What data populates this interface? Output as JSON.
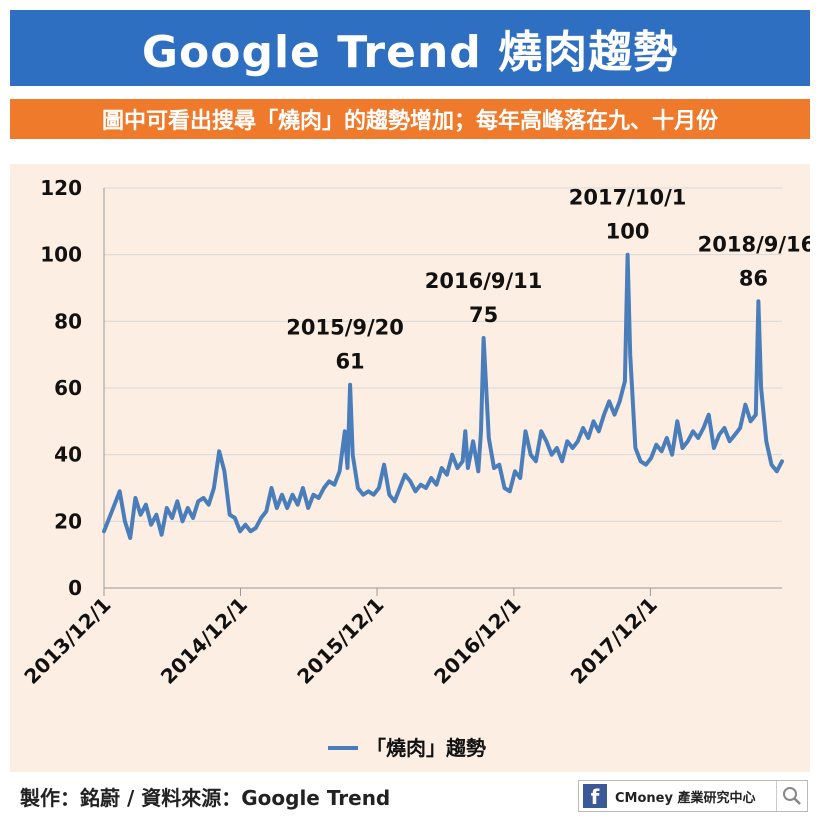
{
  "header": {
    "title": "Google Trend 燒肉趨勢"
  },
  "subheader": {
    "text": "圖中可看出搜尋「燒肉」的趨勢增加；每年高峰落在九、十月份"
  },
  "footer": {
    "credit": "製作：銘蔚 / 資料來源：Google Trend"
  },
  "brand": {
    "fb_glyph": "f",
    "label": "CMoney 產業研究中心",
    "icon": "search-icon"
  },
  "colors": {
    "banner": "#2f6fc2",
    "subheader": "#ef7a2b",
    "panel": "#fdeee3",
    "line": "#4a7ebb"
  },
  "chart_data": {
    "type": "line",
    "yticks": [
      "0",
      "20",
      "40",
      "60",
      "80",
      "100",
      "120"
    ],
    "ylim": [
      0,
      120
    ],
    "xticks": [
      "2013/12/1",
      "2014/12/1",
      "2015/12/1",
      "2016/12/1",
      "2017/12/1"
    ],
    "grid": true,
    "legend": {
      "position": "bottom",
      "label": "「燒肉」趨勢"
    },
    "annotations": [
      {
        "date": "2015/9/20",
        "value": "61",
        "label": "2015/9/20"
      },
      {
        "date": "2016/9/11",
        "value": "75",
        "label": "2016/9/11"
      },
      {
        "date": "2017/10/1",
        "value": "100",
        "label": "2017/10/1"
      },
      {
        "date": "2018/9/16",
        "value": "86",
        "label": "2018/9/16"
      }
    ],
    "series": [
      {
        "name": "「燒肉」趨勢",
        "points": [
          [
            "2013-12-01",
            17
          ],
          [
            "2013-12-22",
            23
          ],
          [
            "2014-01-12",
            29
          ],
          [
            "2014-01-26",
            20
          ],
          [
            "2014-02-09",
            15
          ],
          [
            "2014-02-23",
            27
          ],
          [
            "2014-03-09",
            22
          ],
          [
            "2014-03-23",
            25
          ],
          [
            "2014-04-06",
            19
          ],
          [
            "2014-04-20",
            22
          ],
          [
            "2014-05-04",
            16
          ],
          [
            "2014-05-18",
            24
          ],
          [
            "2014-06-01",
            21
          ],
          [
            "2014-06-15",
            26
          ],
          [
            "2014-06-29",
            20
          ],
          [
            "2014-07-13",
            24
          ],
          [
            "2014-07-27",
            21
          ],
          [
            "2014-08-10",
            26
          ],
          [
            "2014-08-24",
            27
          ],
          [
            "2014-09-07",
            25
          ],
          [
            "2014-09-21",
            30
          ],
          [
            "2014-10-05",
            41
          ],
          [
            "2014-10-19",
            35
          ],
          [
            "2014-11-02",
            22
          ],
          [
            "2014-11-16",
            21
          ],
          [
            "2014-11-30",
            17
          ],
          [
            "2014-12-14",
            19
          ],
          [
            "2014-12-28",
            17
          ],
          [
            "2015-01-11",
            18
          ],
          [
            "2015-01-25",
            21
          ],
          [
            "2015-02-08",
            23
          ],
          [
            "2015-02-22",
            30
          ],
          [
            "2015-03-08",
            24
          ],
          [
            "2015-03-22",
            28
          ],
          [
            "2015-04-05",
            24
          ],
          [
            "2015-04-19",
            28
          ],
          [
            "2015-05-03",
            25
          ],
          [
            "2015-05-17",
            30
          ],
          [
            "2015-05-31",
            24
          ],
          [
            "2015-06-14",
            28
          ],
          [
            "2015-06-28",
            27
          ],
          [
            "2015-07-12",
            30
          ],
          [
            "2015-07-26",
            32
          ],
          [
            "2015-08-09",
            31
          ],
          [
            "2015-08-23",
            35
          ],
          [
            "2015-09-06",
            47
          ],
          [
            "2015-09-13",
            36
          ],
          [
            "2015-09-20",
            61
          ],
          [
            "2015-09-27",
            40
          ],
          [
            "2015-10-11",
            30
          ],
          [
            "2015-10-25",
            28
          ],
          [
            "2015-11-08",
            29
          ],
          [
            "2015-11-22",
            28
          ],
          [
            "2015-12-06",
            30
          ],
          [
            "2015-12-20",
            37
          ],
          [
            "2016-01-03",
            28
          ],
          [
            "2016-01-17",
            26
          ],
          [
            "2016-01-31",
            30
          ],
          [
            "2016-02-14",
            34
          ],
          [
            "2016-02-28",
            32
          ],
          [
            "2016-03-13",
            29
          ],
          [
            "2016-03-27",
            31
          ],
          [
            "2016-04-10",
            30
          ],
          [
            "2016-04-24",
            33
          ],
          [
            "2016-05-08",
            31
          ],
          [
            "2016-05-22",
            36
          ],
          [
            "2016-06-05",
            34
          ],
          [
            "2016-06-19",
            40
          ],
          [
            "2016-07-03",
            36
          ],
          [
            "2016-07-17",
            38
          ],
          [
            "2016-07-24",
            47
          ],
          [
            "2016-07-31",
            36
          ],
          [
            "2016-08-14",
            44
          ],
          [
            "2016-08-28",
            35
          ],
          [
            "2016-09-04",
            47
          ],
          [
            "2016-09-11",
            75
          ],
          [
            "2016-09-25",
            45
          ],
          [
            "2016-10-09",
            36
          ],
          [
            "2016-10-23",
            37
          ],
          [
            "2016-11-06",
            30
          ],
          [
            "2016-11-20",
            29
          ],
          [
            "2016-12-04",
            35
          ],
          [
            "2016-12-18",
            33
          ],
          [
            "2017-01-01",
            47
          ],
          [
            "2017-01-15",
            40
          ],
          [
            "2017-01-29",
            38
          ],
          [
            "2017-02-12",
            47
          ],
          [
            "2017-02-26",
            44
          ],
          [
            "2017-03-12",
            40
          ],
          [
            "2017-03-26",
            42
          ],
          [
            "2017-04-09",
            38
          ],
          [
            "2017-04-23",
            44
          ],
          [
            "2017-05-07",
            42
          ],
          [
            "2017-05-21",
            44
          ],
          [
            "2017-06-04",
            48
          ],
          [
            "2017-06-18",
            45
          ],
          [
            "2017-07-02",
            50
          ],
          [
            "2017-07-16",
            47
          ],
          [
            "2017-07-30",
            52
          ],
          [
            "2017-08-13",
            56
          ],
          [
            "2017-08-27",
            52
          ],
          [
            "2017-09-10",
            56
          ],
          [
            "2017-09-24",
            62
          ],
          [
            "2017-10-01",
            100
          ],
          [
            "2017-10-08",
            70
          ],
          [
            "2017-10-22",
            42
          ],
          [
            "2017-11-05",
            38
          ],
          [
            "2017-11-19",
            37
          ],
          [
            "2017-12-03",
            39
          ],
          [
            "2017-12-17",
            43
          ],
          [
            "2017-12-31",
            41
          ],
          [
            "2018-01-14",
            45
          ],
          [
            "2018-01-28",
            40
          ],
          [
            "2018-02-11",
            50
          ],
          [
            "2018-02-25",
            42
          ],
          [
            "2018-03-11",
            44
          ],
          [
            "2018-03-25",
            47
          ],
          [
            "2018-04-08",
            45
          ],
          [
            "2018-04-22",
            48
          ],
          [
            "2018-05-06",
            52
          ],
          [
            "2018-05-20",
            42
          ],
          [
            "2018-06-03",
            46
          ],
          [
            "2018-06-17",
            48
          ],
          [
            "2018-07-01",
            44
          ],
          [
            "2018-07-15",
            46
          ],
          [
            "2018-07-29",
            48
          ],
          [
            "2018-08-12",
            55
          ],
          [
            "2018-08-26",
            50
          ],
          [
            "2018-09-09",
            52
          ],
          [
            "2018-09-16",
            86
          ],
          [
            "2018-09-23",
            60
          ],
          [
            "2018-10-07",
            44
          ],
          [
            "2018-10-21",
            37
          ],
          [
            "2018-11-04",
            35
          ],
          [
            "2018-11-18",
            38
          ]
        ]
      }
    ]
  }
}
